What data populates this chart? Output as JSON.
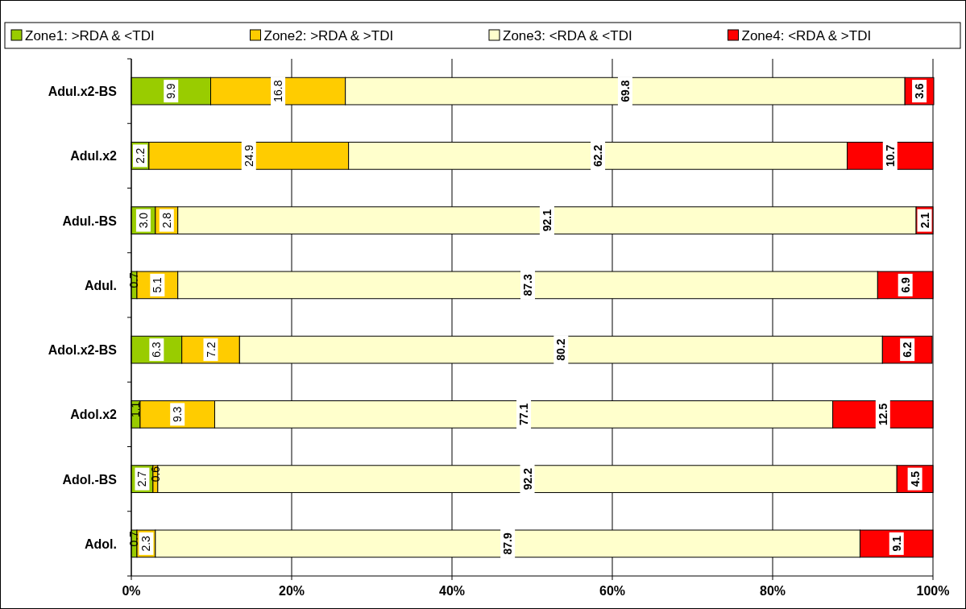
{
  "chart_data": {
    "type": "bar",
    "orientation": "horizontal",
    "stacked": true,
    "categories": [
      "Adul.x2-BS",
      "Adul.x2",
      "Adul.-BS",
      "Adul.",
      "Adol.x2-BS",
      "Adol.x2",
      "Adol.-BS",
      "Adol."
    ],
    "series": [
      {
        "name": "Zone1: >RDA & <TDI",
        "color": "#99cc00",
        "values": [
          9.9,
          2.2,
          3.0,
          0.7,
          6.3,
          1.1,
          2.7,
          0.7
        ],
        "value_labels": [
          "9.9",
          "2.2",
          "3.0",
          "0.7",
          "6.3",
          "1.1",
          "2.7",
          "0.7"
        ]
      },
      {
        "name": "Zone2: >RDA & >TDI",
        "color": "#ffcc00",
        "values": [
          16.8,
          24.9,
          2.8,
          5.1,
          7.2,
          9.3,
          0.6,
          2.3
        ],
        "value_labels": [
          "16.8",
          "24.9",
          "2.8",
          "5.1",
          "7.2",
          "9.3",
          "0.6",
          "2.3"
        ]
      },
      {
        "name": "Zone3: <RDA & <TDI",
        "color": "#ffffcc",
        "values": [
          69.8,
          62.2,
          92.1,
          87.3,
          80.2,
          77.1,
          92.2,
          87.9
        ],
        "value_labels": [
          "69.8",
          "62.2",
          "92.1",
          "87.3",
          "80.2",
          "77.1",
          "92.2",
          "87.9"
        ]
      },
      {
        "name": "Zone4: <RDA & >TDI",
        "color": "#ff0000",
        "values": [
          3.6,
          10.7,
          2.1,
          6.9,
          6.2,
          12.5,
          4.5,
          9.1
        ],
        "value_labels": [
          "3.6",
          "10.7",
          "2.1",
          "6.9",
          "6.2",
          "12.5",
          "4.5",
          "9.1"
        ]
      }
    ],
    "xlim": [
      0,
      100
    ],
    "xticks": [
      {
        "value": 0,
        "label": "0%"
      },
      {
        "value": 20,
        "label": "20%"
      },
      {
        "value": 40,
        "label": "40%"
      },
      {
        "value": 60,
        "label": "60%"
      },
      {
        "value": 80,
        "label": "80%"
      },
      {
        "value": 100,
        "label": "100%"
      }
    ],
    "grid": "x",
    "legend": "top"
  }
}
